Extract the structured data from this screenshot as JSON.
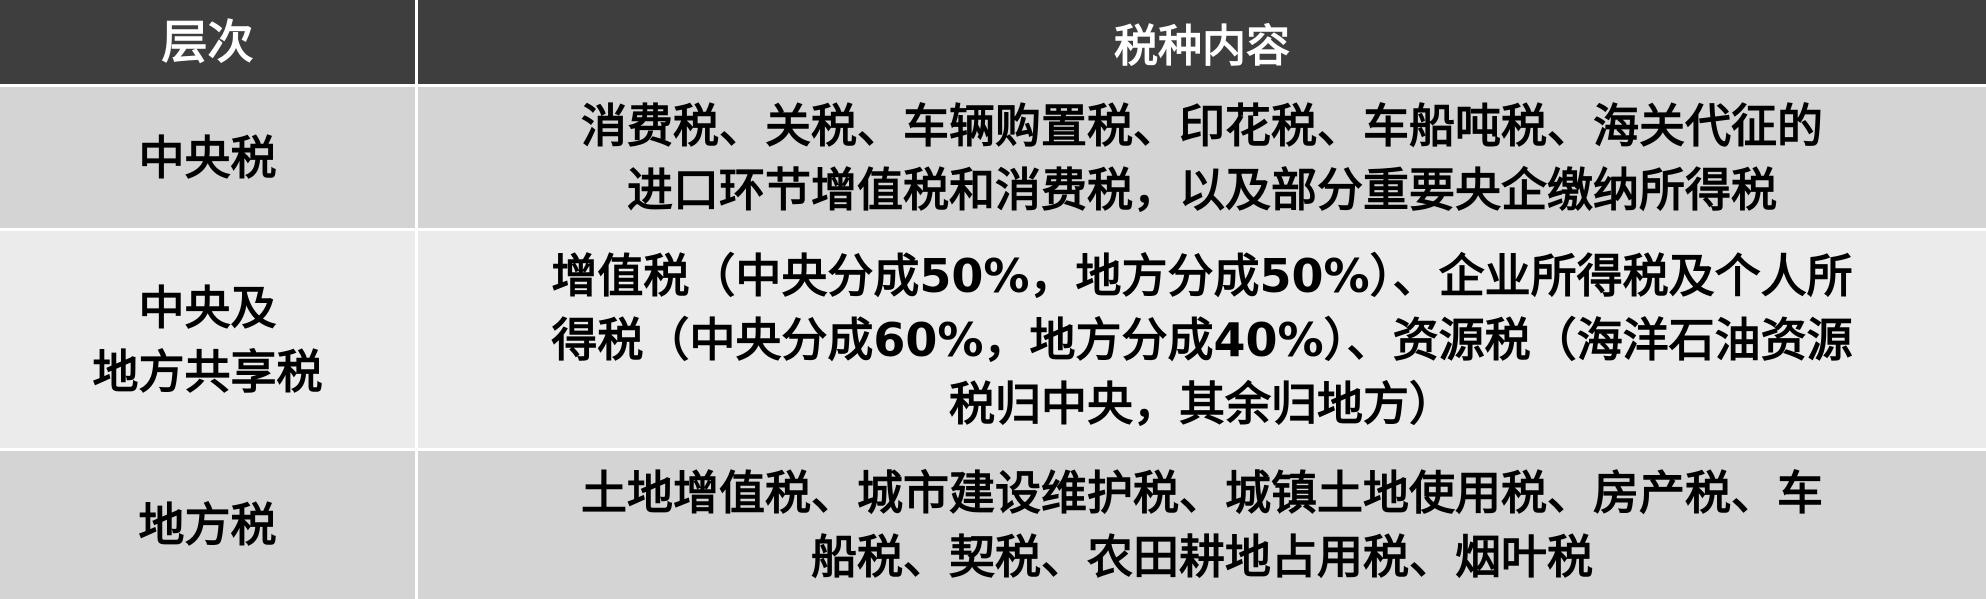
{
  "table": {
    "headers": [
      "层次",
      "税种内容"
    ],
    "rows": [
      {
        "tier": "中央税",
        "content": "消费税、关税、车辆购置税、印花税、车船吨税、海关代征的\n进口环节增值税和消费税，以及部分重要央企缴纳所得税"
      },
      {
        "tier": "中央及\n地方共享税",
        "content": "增值税（中央分成50%，地方分成50%）、企业所得税及个人所\n得税（中央分成60%，地方分成40%）、资源税（海洋石油资源\n税归中央，其余归地方）"
      },
      {
        "tier": "地方税",
        "content": "土地增值税、城市建设维护税、城镇土地使用税、房产税、车\n船税、契税、农田耕地占用税、烟叶税"
      }
    ]
  }
}
